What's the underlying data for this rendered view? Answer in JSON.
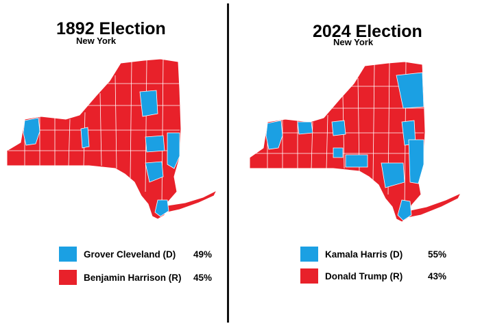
{
  "colors": {
    "dem": "#1ba0e3",
    "rep": "#e8212a",
    "border": "#ffffff"
  },
  "elections": [
    {
      "title": "1892 Election",
      "state": "New York",
      "legend": [
        {
          "candidate": "Grover Cleveland (D)",
          "pct": "49%",
          "party": "dem"
        },
        {
          "candidate": "Benjamin Harrison (R)",
          "pct": "45%",
          "party": "rep"
        }
      ]
    },
    {
      "title": "2024 Election",
      "state": "New York",
      "legend": [
        {
          "candidate": "Kamala Harris (D)",
          "pct": "55%",
          "party": "dem"
        },
        {
          "candidate": "Donald Trump (R)",
          "pct": "43%",
          "party": "rep"
        }
      ]
    }
  ]
}
